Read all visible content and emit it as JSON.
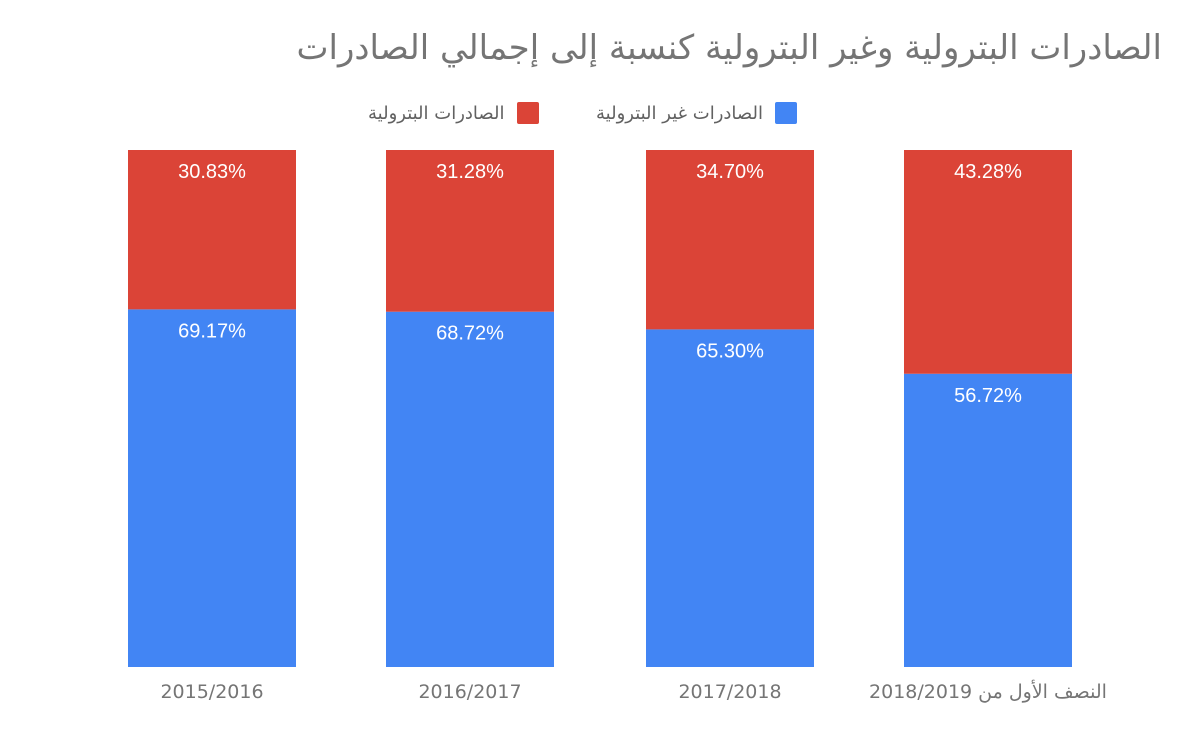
{
  "chart_data": {
    "type": "bar",
    "stacked": true,
    "title": "الصادرات البترولية وغير البترولية كنسبة إلى إجمالي الصادرات",
    "categories": [
      "2015/2016",
      "2016/2017",
      "2017/2018",
      "النصف الأول من 2018/2019"
    ],
    "series": [
      {
        "name": "الصادرات غير البترولية",
        "color": "#4285f4",
        "values": [
          69.17,
          68.72,
          65.3,
          56.72
        ],
        "labels": [
          "69.17%",
          "68.72%",
          "65.30%",
          "56.72%"
        ]
      },
      {
        "name": "الصادرات البترولية",
        "color": "#db4437",
        "values": [
          30.83,
          31.28,
          34.7,
          43.28
        ],
        "labels": [
          "30.83%",
          "31.28%",
          "34.70%",
          "43.28%"
        ]
      }
    ],
    "ylim": [
      0,
      100
    ],
    "grid": false,
    "legend_position": "top"
  },
  "text_color": "#757575",
  "label_color": "#ffffff"
}
